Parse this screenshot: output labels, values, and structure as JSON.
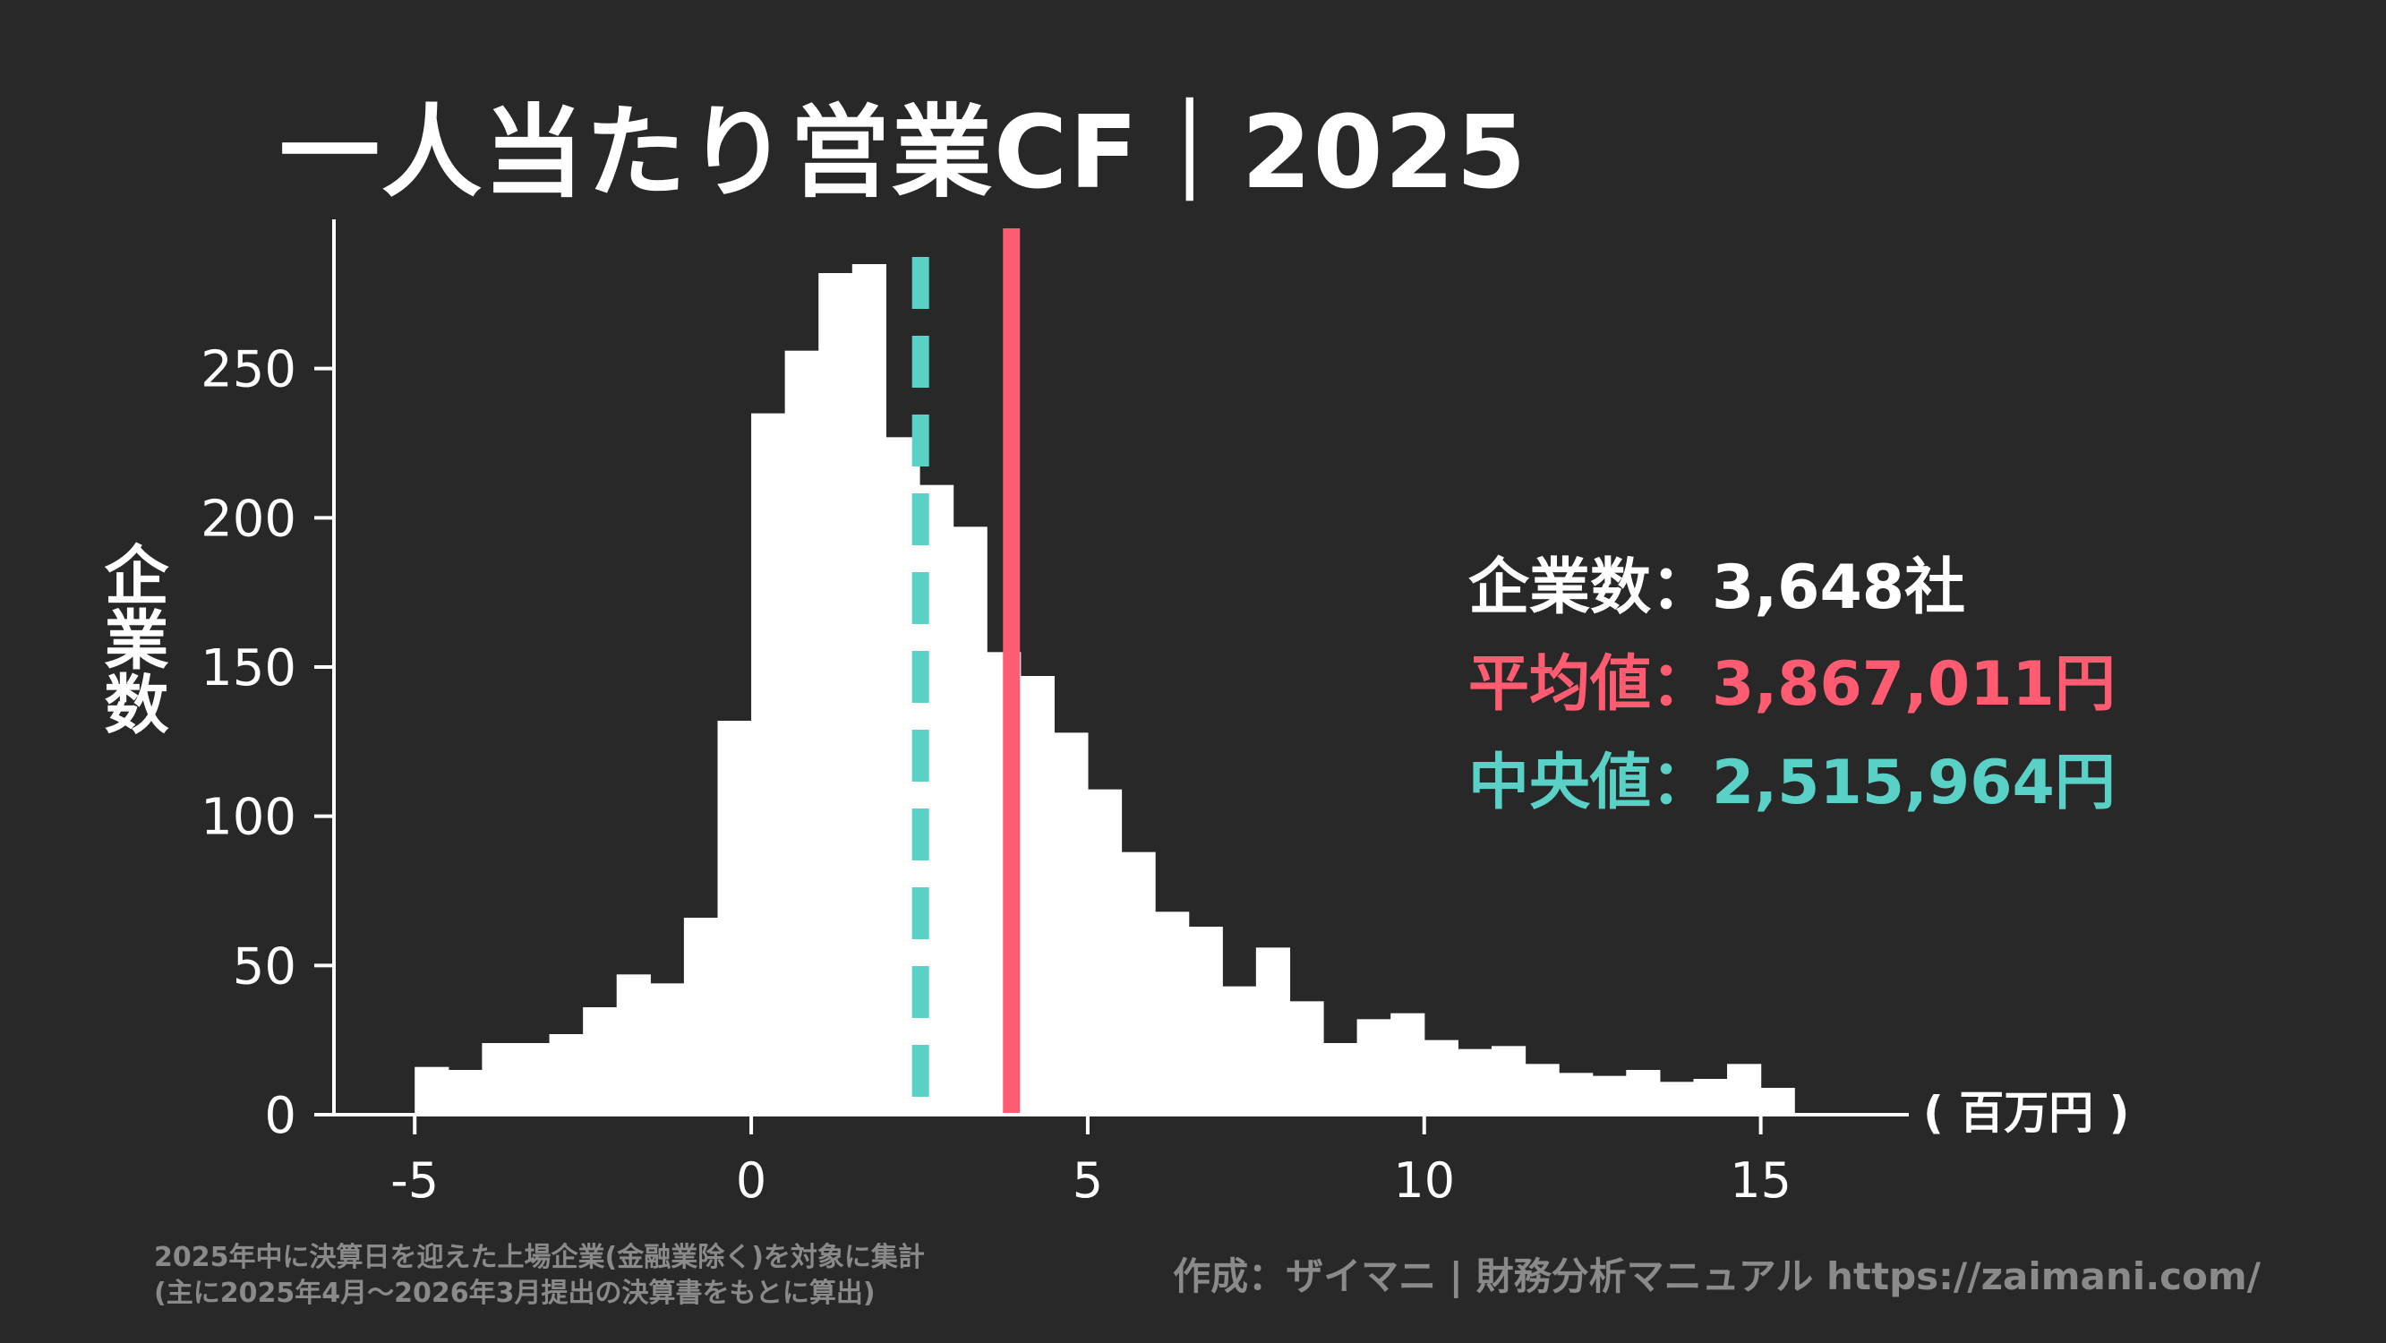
{
  "title": "一人当たり営業CF｜2025",
  "stats": {
    "count": "企業数：3,648社",
    "mean": "平均値：3,867,011円",
    "median": "中央値：2,515,964円"
  },
  "footnote": {
    "line1": "2025年中に決算日を迎えた上場企業(金融業除く)を対象に集計",
    "line2": "(主に2025年4月〜2026年3月提出の決算書をもとに算出)"
  },
  "credit": "作成：ザイマニ | 財務分析マニュアル https://zaimani.com/",
  "colors": {
    "background": "#282828",
    "bars": "#ffffff",
    "mean": "#ff5c72",
    "median": "#5ad1c6",
    "muted": "#8a8a8a"
  },
  "chart_data": {
    "type": "bar",
    "title": "一人当たり営業CF｜2025",
    "ylabel": "企業数",
    "xunit": "( 百万円 )",
    "xticks": [
      -5,
      0,
      5,
      10,
      15
    ],
    "yticks": [
      0,
      50,
      100,
      150,
      200,
      250
    ],
    "xlim": [
      -6.2,
      17.2
    ],
    "ylim": [
      0,
      300
    ],
    "bin_width": 0.5,
    "bin_start": -5,
    "values": [
      16,
      15,
      24,
      24,
      27,
      36,
      47,
      44,
      66,
      132,
      235,
      256,
      282,
      285,
      227,
      211,
      197,
      155,
      147,
      128,
      109,
      88,
      68,
      63,
      43,
      56,
      38,
      24,
      32,
      34,
      25,
      22,
      23,
      17,
      14,
      13,
      15,
      11,
      12,
      17,
      9
    ],
    "mean": 3.867011,
    "median": 2.515964,
    "grid": false,
    "legend": "none"
  }
}
